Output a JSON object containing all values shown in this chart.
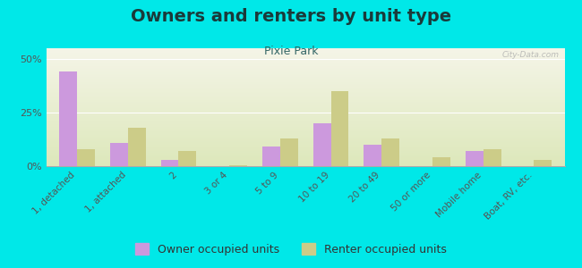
{
  "title": "Owners and renters by unit type",
  "subtitle": "Pixie Park",
  "categories": [
    "1, detached",
    "1, attached",
    "2",
    "3 or 4",
    "5 to 9",
    "10 to 19",
    "20 to 49",
    "50 or more",
    "Mobile home",
    "Boat, RV, etc."
  ],
  "owner_values": [
    44,
    11,
    3,
    0,
    9,
    20,
    10,
    0,
    7,
    0
  ],
  "renter_values": [
    8,
    18,
    7,
    0.5,
    13,
    35,
    13,
    4,
    8,
    3
  ],
  "owner_color": "#cc99dd",
  "renter_color": "#cccc88",
  "background_color": "#00e8e8",
  "plot_bg_top": "#f5f5e8",
  "plot_bg_bottom": "#dde8bb",
  "ylim": [
    0,
    55
  ],
  "yticks": [
    0,
    25,
    50
  ],
  "ytick_labels": [
    "0%",
    "25%",
    "50%"
  ],
  "ylabel_fontsize": 8,
  "title_fontsize": 14,
  "subtitle_fontsize": 9,
  "legend_fontsize": 9,
  "watermark_text": "City-Data.com"
}
